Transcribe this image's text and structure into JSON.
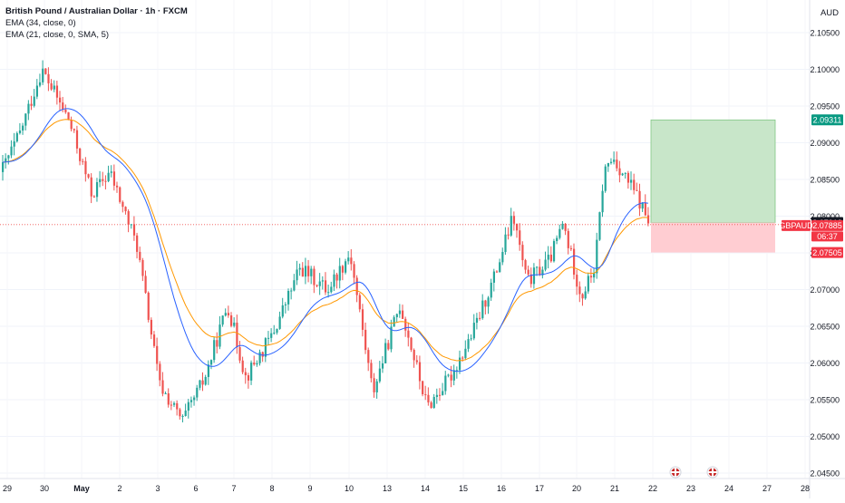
{
  "header": {
    "symbol_title": "British Pound / Australian Dollar · 1h · FXCM",
    "indicator_1": "EMA (34, close, 0)",
    "indicator_2": "EMA (21, close, 0, SMA, 5)",
    "currency": "AUD"
  },
  "price_axis": {
    "ticks": [
      "2.10500",
      "2.10000",
      "2.09500",
      "2.09000",
      "2.08500",
      "2.08000",
      "2.07500",
      "2.07000",
      "2.06500",
      "2.06000",
      "2.05500",
      "2.05000",
      "2.04500"
    ]
  },
  "time_axis": {
    "ticks": [
      "29",
      "30",
      "May",
      "2",
      "3",
      "6",
      "7",
      "8",
      "9",
      "10",
      "13",
      "14",
      "15",
      "16",
      "17",
      "20",
      "21",
      "22",
      "23",
      "24",
      "27",
      "28"
    ]
  },
  "price_labels": {
    "take_profit": "2.09311",
    "entry": "2.07913",
    "current_symbol": "GBPAUD",
    "current_price": "2.07885",
    "countdown": "06:37",
    "stop_loss": "2.07505"
  },
  "colors": {
    "up": "#26a69a",
    "down": "#ef5350",
    "ema34": "#ff9800",
    "ema21": "#2962ff",
    "profit_zone": "#c8e6c9",
    "loss_zone": "#ffcdd2",
    "tp_label": "#089981",
    "sl_label": "#f23645"
  },
  "chart_data": {
    "type": "candlestick",
    "symbol": "GBPAUD",
    "timeframe": "1h",
    "y_range": [
      2.0425,
      2.1075
    ],
    "path_keypoints": [
      {
        "t": 0,
        "p": 2.086
      },
      {
        "t": 20,
        "p": 2.091
      },
      {
        "t": 45,
        "p": 2.1
      },
      {
        "t": 75,
        "p": 2.093
      },
      {
        "t": 100,
        "p": 2.083
      },
      {
        "t": 120,
        "p": 2.086
      },
      {
        "t": 150,
        "p": 2.076
      },
      {
        "t": 175,
        "p": 2.057
      },
      {
        "t": 200,
        "p": 2.052
      },
      {
        "t": 225,
        "p": 2.058
      },
      {
        "t": 250,
        "p": 2.068
      },
      {
        "t": 270,
        "p": 2.058
      },
      {
        "t": 300,
        "p": 2.064
      },
      {
        "t": 330,
        "p": 2.073
      },
      {
        "t": 360,
        "p": 2.07
      },
      {
        "t": 385,
        "p": 2.075
      },
      {
        "t": 410,
        "p": 2.056
      },
      {
        "t": 440,
        "p": 2.068
      },
      {
        "t": 470,
        "p": 2.054
      },
      {
        "t": 495,
        "p": 2.058
      },
      {
        "t": 520,
        "p": 2.064
      },
      {
        "t": 545,
        "p": 2.072
      },
      {
        "t": 565,
        "p": 2.08
      },
      {
        "t": 580,
        "p": 2.071
      },
      {
        "t": 605,
        "p": 2.074
      },
      {
        "t": 620,
        "p": 2.079
      },
      {
        "t": 640,
        "p": 2.069
      },
      {
        "t": 655,
        "p": 2.073
      },
      {
        "t": 665,
        "p": 2.086
      },
      {
        "t": 675,
        "p": 2.088
      },
      {
        "t": 700,
        "p": 2.083
      },
      {
        "t": 716,
        "p": 2.0789
      }
    ],
    "long_position": {
      "entry": 2.07913,
      "take_profit": 2.09311,
      "stop_loss": 2.07505
    },
    "events": [
      {
        "date": "22/23",
        "icon": "uk-flag-icon"
      },
      {
        "date": "23/24",
        "icon": "uk-flag-icon"
      }
    ]
  }
}
